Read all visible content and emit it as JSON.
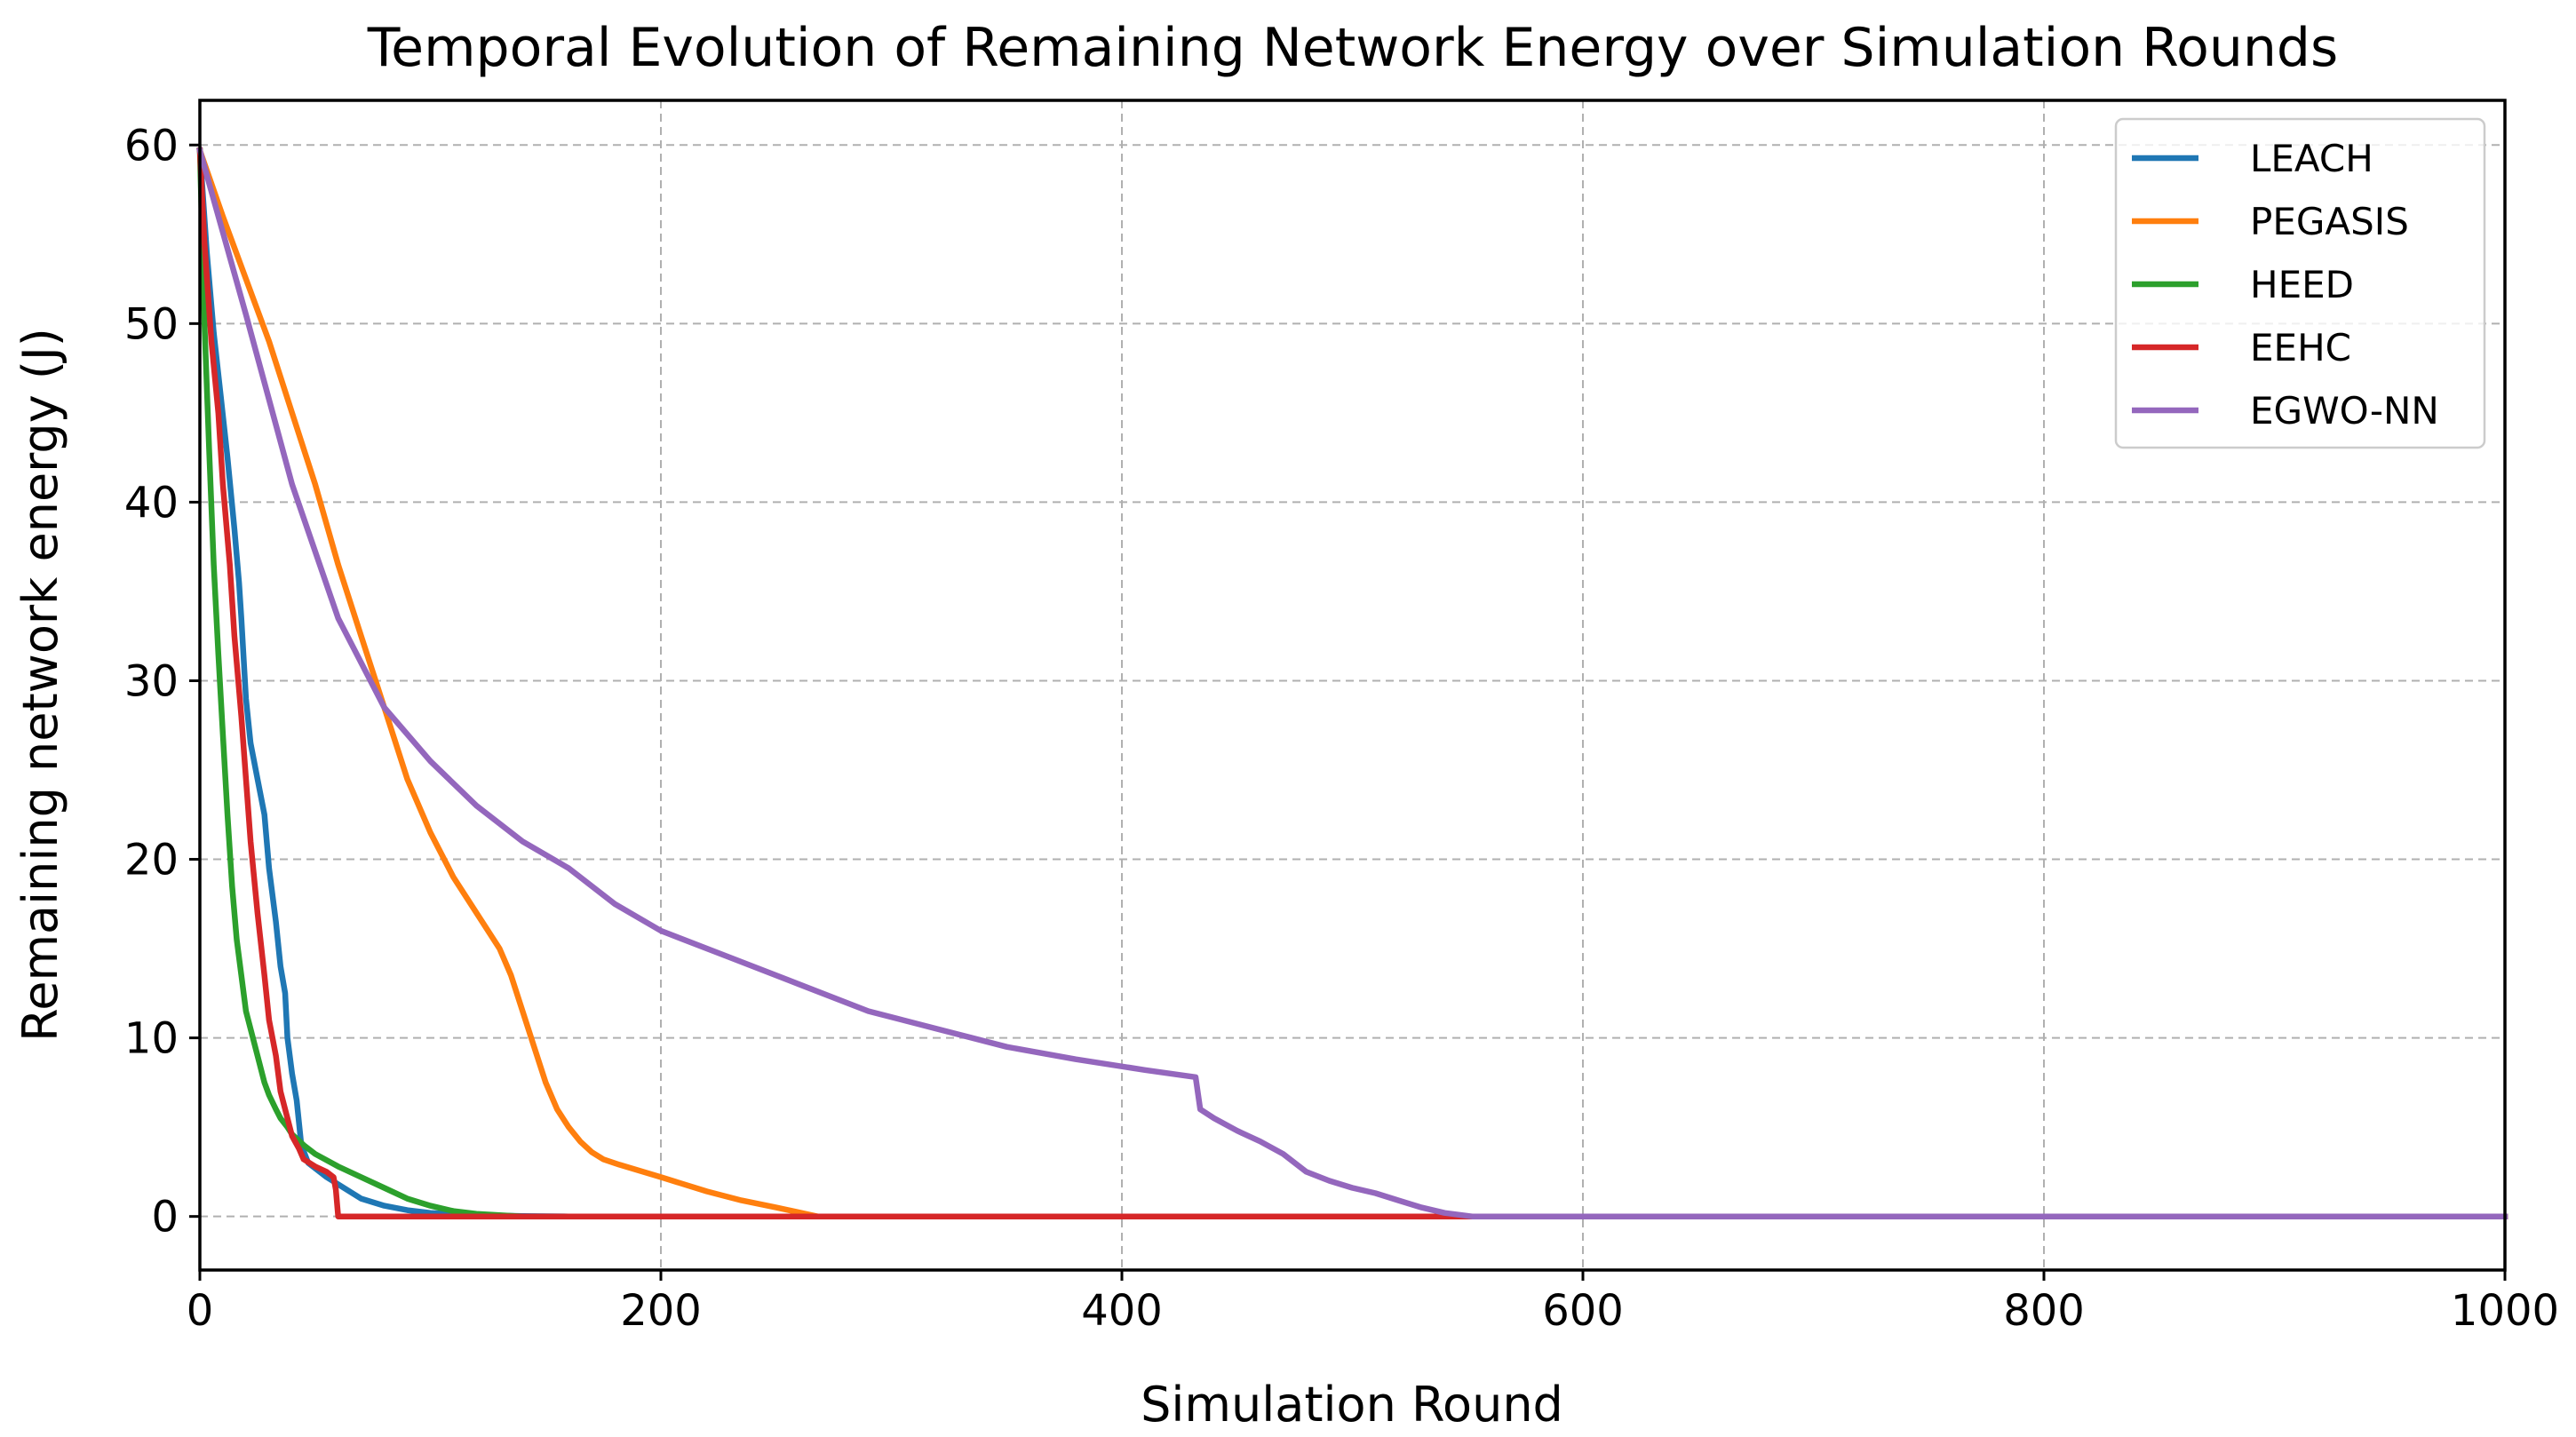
{
  "chart_data": {
    "type": "line",
    "title": "Temporal Evolution of Remaining Network Energy over Simulation Rounds",
    "xlabel": "Simulation Round",
    "ylabel": "Remaining network energy (J)",
    "xlim": [
      0,
      1000
    ],
    "ylim": [
      -3,
      62.5
    ],
    "xticks": [
      0,
      200,
      400,
      600,
      800,
      1000
    ],
    "yticks": [
      0,
      10,
      20,
      30,
      40,
      50,
      60
    ],
    "grid": true,
    "legend_position": "top-right",
    "series": [
      {
        "name": "LEACH",
        "color": "#1f77b4",
        "x": [
          0,
          3,
          6,
          9,
          12,
          15,
          17,
          18,
          20,
          22,
          25,
          28,
          30,
          33,
          35,
          37,
          38,
          40,
          42,
          44,
          47,
          50,
          55,
          60,
          70,
          80,
          90,
          100,
          120,
          140,
          160,
          1000
        ],
        "y": [
          59.7,
          54.0,
          49.5,
          46.0,
          42.5,
          38.5,
          35.5,
          33.5,
          29.0,
          26.5,
          24.5,
          22.5,
          19.5,
          16.5,
          14.0,
          12.5,
          10.0,
          8.0,
          6.5,
          4.0,
          3.0,
          2.7,
          2.2,
          1.8,
          1.0,
          0.6,
          0.35,
          0.2,
          0.08,
          0.02,
          0.0,
          0.0
        ]
      },
      {
        "name": "PEGASIS",
        "color": "#ff7f0e",
        "x": [
          0,
          10,
          20,
          30,
          40,
          50,
          60,
          70,
          80,
          90,
          100,
          110,
          120,
          130,
          135,
          140,
          145,
          150,
          155,
          160,
          165,
          170,
          175,
          182,
          200,
          220,
          235,
          250,
          268,
          1000
        ],
        "y": [
          59.7,
          56.0,
          52.5,
          49.0,
          45.0,
          41.0,
          36.5,
          32.5,
          28.5,
          24.5,
          21.5,
          19.0,
          17.0,
          15.0,
          13.5,
          11.5,
          9.5,
          7.5,
          6.0,
          5.0,
          4.2,
          3.6,
          3.2,
          2.9,
          2.2,
          1.4,
          0.9,
          0.5,
          0.0,
          0.0
        ]
      },
      {
        "name": "HEED",
        "color": "#2ca02c",
        "x": [
          0,
          2,
          4,
          6,
          8,
          10,
          12,
          14,
          16,
          18,
          20,
          22,
          25,
          28,
          30,
          33,
          35,
          38,
          40,
          45,
          50,
          60,
          70,
          80,
          90,
          100,
          110,
          120,
          140,
          1000
        ],
        "y": [
          59.7,
          50.0,
          43.0,
          36.5,
          31.5,
          27.0,
          22.5,
          18.5,
          15.5,
          13.5,
          11.5,
          10.5,
          9.0,
          7.5,
          6.8,
          6.0,
          5.5,
          5.0,
          4.6,
          4.0,
          3.5,
          2.8,
          2.2,
          1.6,
          1.0,
          0.6,
          0.3,
          0.15,
          0.0,
          0.0
        ]
      },
      {
        "name": "EEHC",
        "color": "#d62728",
        "x": [
          0,
          2,
          5,
          8,
          10,
          13,
          15,
          18,
          20,
          22,
          25,
          28,
          30,
          33,
          35,
          38,
          40,
          43,
          45,
          50,
          55,
          58,
          59,
          60,
          1000
        ],
        "y": [
          59.7,
          54.5,
          49.0,
          45.0,
          41.0,
          36.5,
          32.5,
          28.0,
          24.5,
          21.0,
          17.0,
          13.5,
          11.0,
          9.0,
          7.0,
          5.5,
          4.5,
          3.8,
          3.2,
          2.8,
          2.5,
          2.2,
          1.5,
          0.0,
          0.0
        ]
      },
      {
        "name": "EGWO-NN",
        "color": "#9467bd",
        "x": [
          0,
          20,
          40,
          60,
          80,
          100,
          120,
          140,
          160,
          180,
          200,
          230,
          260,
          290,
          320,
          350,
          380,
          410,
          432,
          434,
          440,
          450,
          460,
          470,
          480,
          490,
          500,
          510,
          520,
          530,
          540,
          552,
          1000
        ],
        "y": [
          59.7,
          50.5,
          41.0,
          33.5,
          28.5,
          25.5,
          23.0,
          21.0,
          19.5,
          17.5,
          16.0,
          14.5,
          13.0,
          11.5,
          10.5,
          9.5,
          8.8,
          8.2,
          7.8,
          6.0,
          5.5,
          4.8,
          4.2,
          3.5,
          2.5,
          2.0,
          1.6,
          1.3,
          0.9,
          0.5,
          0.2,
          0.0,
          0.0
        ]
      }
    ]
  }
}
